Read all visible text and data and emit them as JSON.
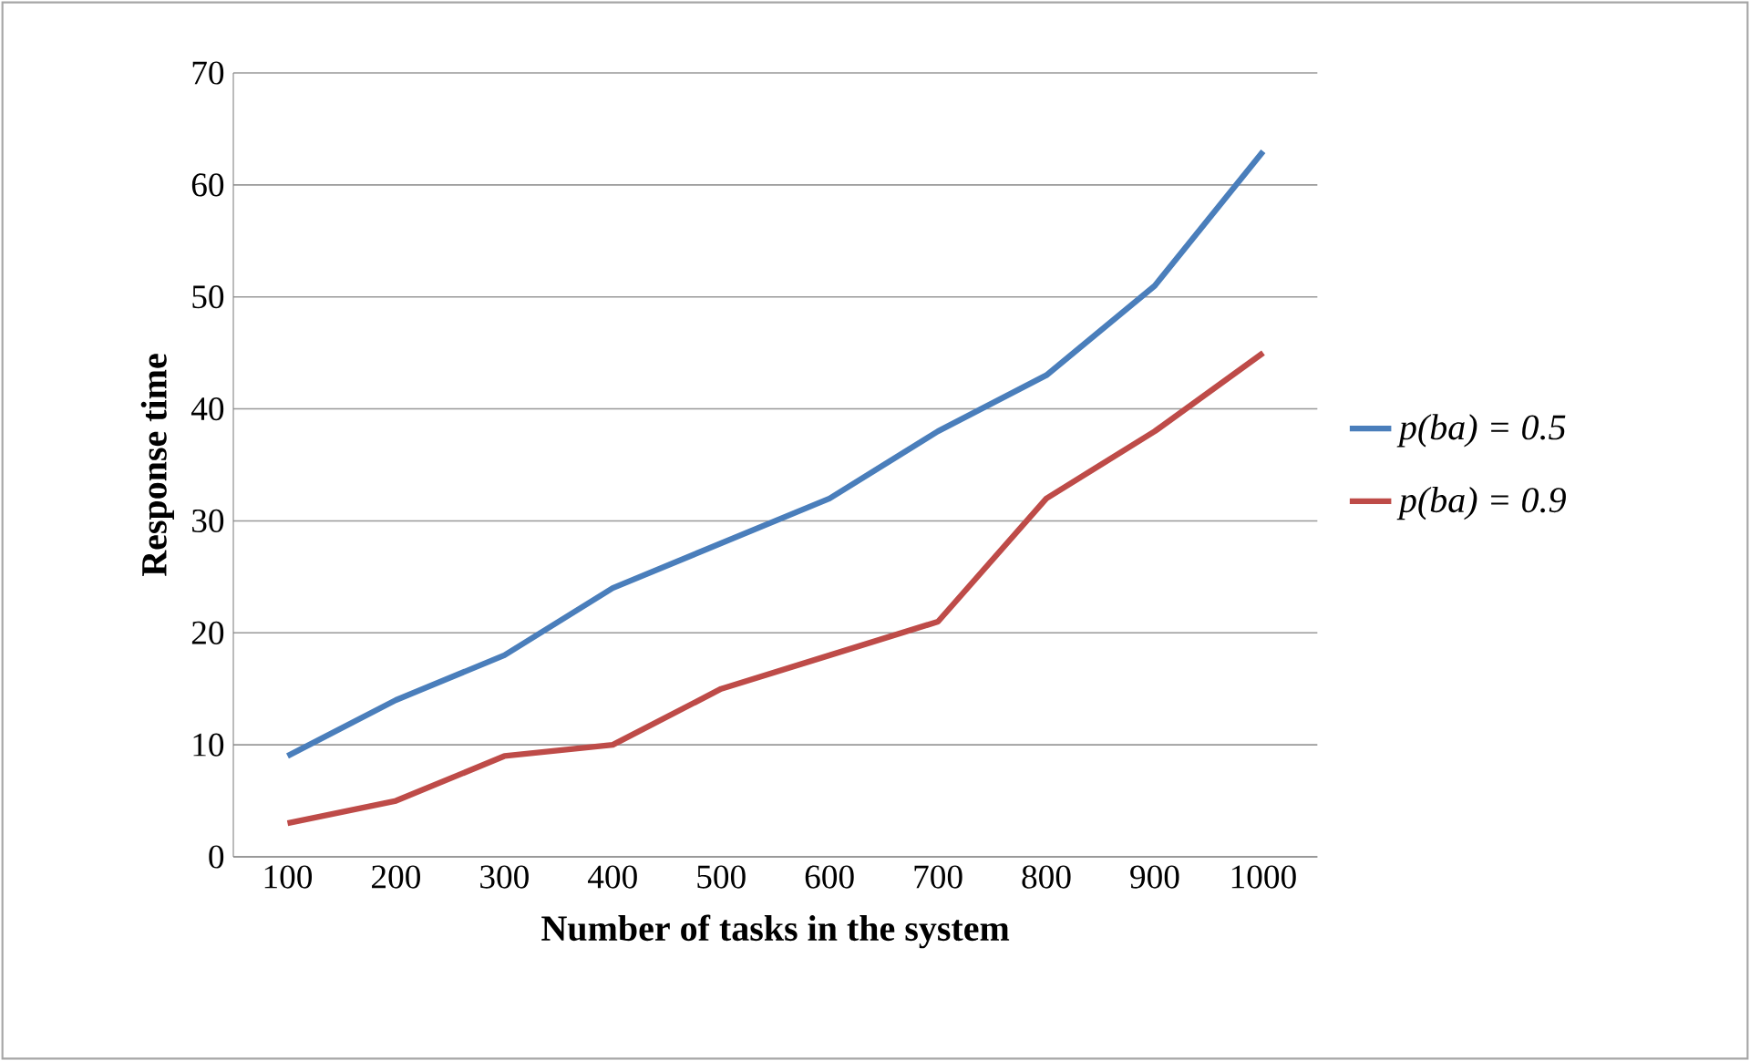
{
  "chart_data": {
    "type": "line",
    "xlabel": "Number of tasks in the system",
    "ylabel": "Response time",
    "categories": [
      "100",
      "200",
      "300",
      "400",
      "500",
      "600",
      "700",
      "800",
      "900",
      "1000"
    ],
    "series": [
      {
        "name": "p(ba) = 0.5",
        "color": "#4a7ebb",
        "values": [
          9,
          14,
          18,
          24,
          28,
          32,
          38,
          43,
          51,
          63
        ]
      },
      {
        "name": "p(ba) = 0.9",
        "color": "#be4b48",
        "values": [
          3,
          5,
          9,
          10,
          15,
          18,
          21,
          32,
          38,
          45
        ]
      }
    ],
    "ylim": [
      0,
      70
    ],
    "yticks": [
      0,
      10,
      20,
      30,
      40,
      50,
      60,
      70
    ],
    "grid": "y",
    "legend": "right",
    "marker": "none",
    "line_style": "solid"
  }
}
